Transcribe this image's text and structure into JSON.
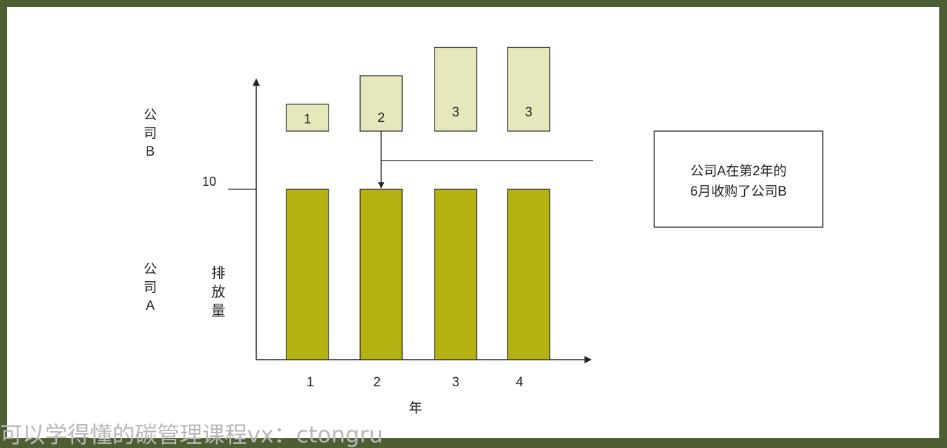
{
  "chart_data": {
    "type": "bar",
    "categories": [
      "1",
      "2",
      "3",
      "4"
    ],
    "xlabel": "年",
    "ylabel": "排放量",
    "ytick": "10",
    "series": [
      {
        "name": "公司A",
        "values": [
          10,
          10,
          10,
          10
        ]
      },
      {
        "name": "公司B",
        "labels": [
          "1",
          "2",
          "3",
          "3"
        ],
        "values": [
          1,
          2,
          3,
          3
        ]
      }
    ],
    "company_b_label": [
      "公",
      "司",
      "B"
    ],
    "company_a_label": [
      "公",
      "司",
      "A"
    ],
    "ylabel_chars": [
      "排",
      "放",
      "量"
    ],
    "annotation": [
      "公司A在第2年的",
      "6月收购了公司B"
    ],
    "colors": {
      "company_a": "#b3b212",
      "company_b": "#e6e7bb",
      "frame": "#4c5e32"
    }
  },
  "watermark": "可以学得懂的碳管理课程vx：ctongru"
}
